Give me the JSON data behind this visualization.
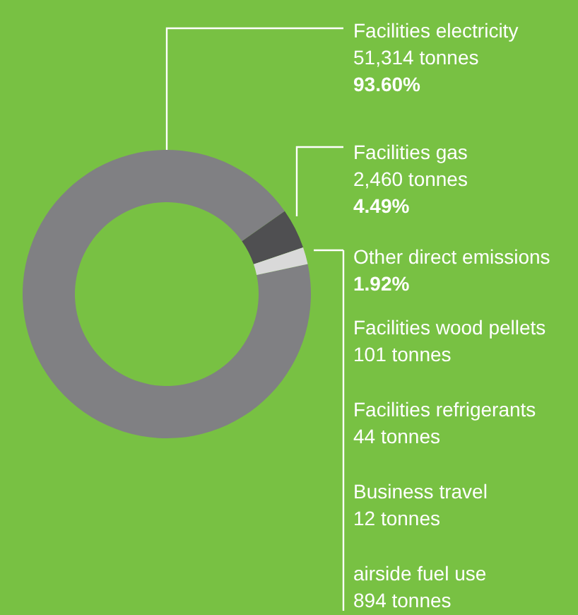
{
  "chart_data": {
    "type": "donut",
    "categories": [
      "Facilities electricity",
      "Facilities gas",
      "Other direct emissions"
    ],
    "values": [
      93.6,
      4.49,
      1.92
    ],
    "colors": [
      "#808083",
      "#4f4f51",
      "#d9d9d9"
    ],
    "value_labels": [
      "93.60%",
      "4.49%",
      "1.92%"
    ],
    "annotations": [
      "51,314 tonnes",
      "2,460 tonnes",
      "Facilities wood pellets\n101 tonnes",
      "Facilities refrigerants\n44 tonnes",
      "Business travel\n12 tonnes",
      "airside fuel use\n894 tonnes"
    ],
    "legend": false
  }
}
